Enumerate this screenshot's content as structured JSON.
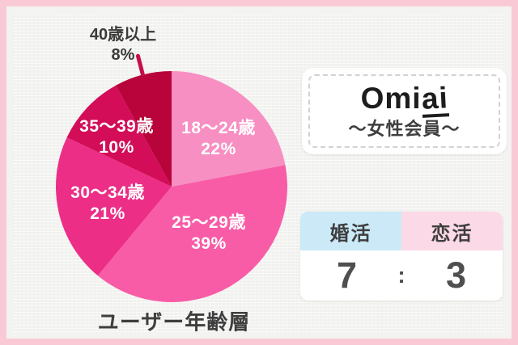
{
  "chart_data": {
    "type": "pie",
    "title": "ユーザー年齢層",
    "unit": "%",
    "direction": "clockwise",
    "start_angle_deg": 0,
    "slices": [
      {
        "label": "18〜24歳",
        "value": 22,
        "pct_label": "22%",
        "color": "#F78FC2"
      },
      {
        "label": "25〜29歳",
        "value": 39,
        "pct_label": "39%",
        "color": "#F85CA7"
      },
      {
        "label": "30〜34歳",
        "value": 21,
        "pct_label": "21%",
        "color": "#EC2E86"
      },
      {
        "label": "35〜39歳",
        "value": 10,
        "pct_label": "10%",
        "color": "#D30D58"
      },
      {
        "label": "40歳以上",
        "value": 8,
        "pct_label": "8%",
        "color": "#B8043A",
        "callout": true
      }
    ],
    "callout": {
      "tick_color": "#C50F48"
    },
    "legend_position": "none",
    "grid": false
  },
  "logo_card": {
    "brand_prefix": "Omi",
    "brand_suffix": "ai",
    "subtitle": "〜女性会員〜"
  },
  "ratio_card": {
    "columns": [
      {
        "label": "婚活",
        "value": "7",
        "header_bg": "#CBE9F7"
      },
      {
        "label": "恋活",
        "value": "3",
        "header_bg": "#FBD9E6"
      }
    ],
    "separator": ":"
  },
  "colors": {
    "frame_pink": "#F9CAD6",
    "canvas_bg": "#F3F3F1",
    "dark_text": "#3E3E3E",
    "ratio_text": "#4F4F4F"
  }
}
